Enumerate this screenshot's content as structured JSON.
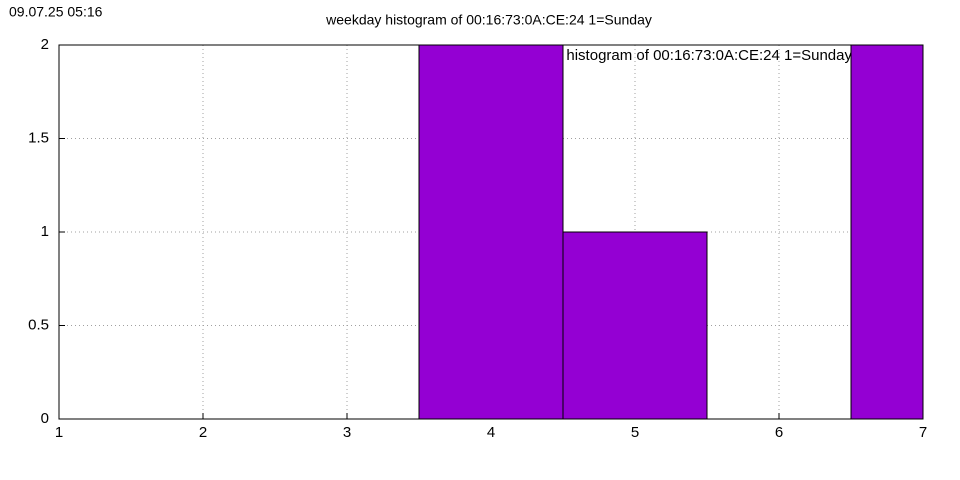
{
  "timestamp": "09.07.25 05:16",
  "chart_data": {
    "type": "bar",
    "title": "weekday histogram of 00:16:73:0A:CE:24 1=Sunday",
    "x": [
      4,
      5,
      7
    ],
    "series": [
      {
        "name": "weekday histogram of 00:16:73:0A:CE:24 1=Sunday",
        "color": "#9400d3",
        "values": [
          2,
          1,
          2
        ]
      }
    ],
    "xlim": [
      1,
      7
    ],
    "xticks": [
      1,
      2,
      3,
      4,
      5,
      6,
      7
    ],
    "ylim": [
      0,
      2
    ],
    "yticks": [
      0,
      0.5,
      1,
      1.5,
      2
    ],
    "grid": true,
    "legend": "top-right"
  }
}
